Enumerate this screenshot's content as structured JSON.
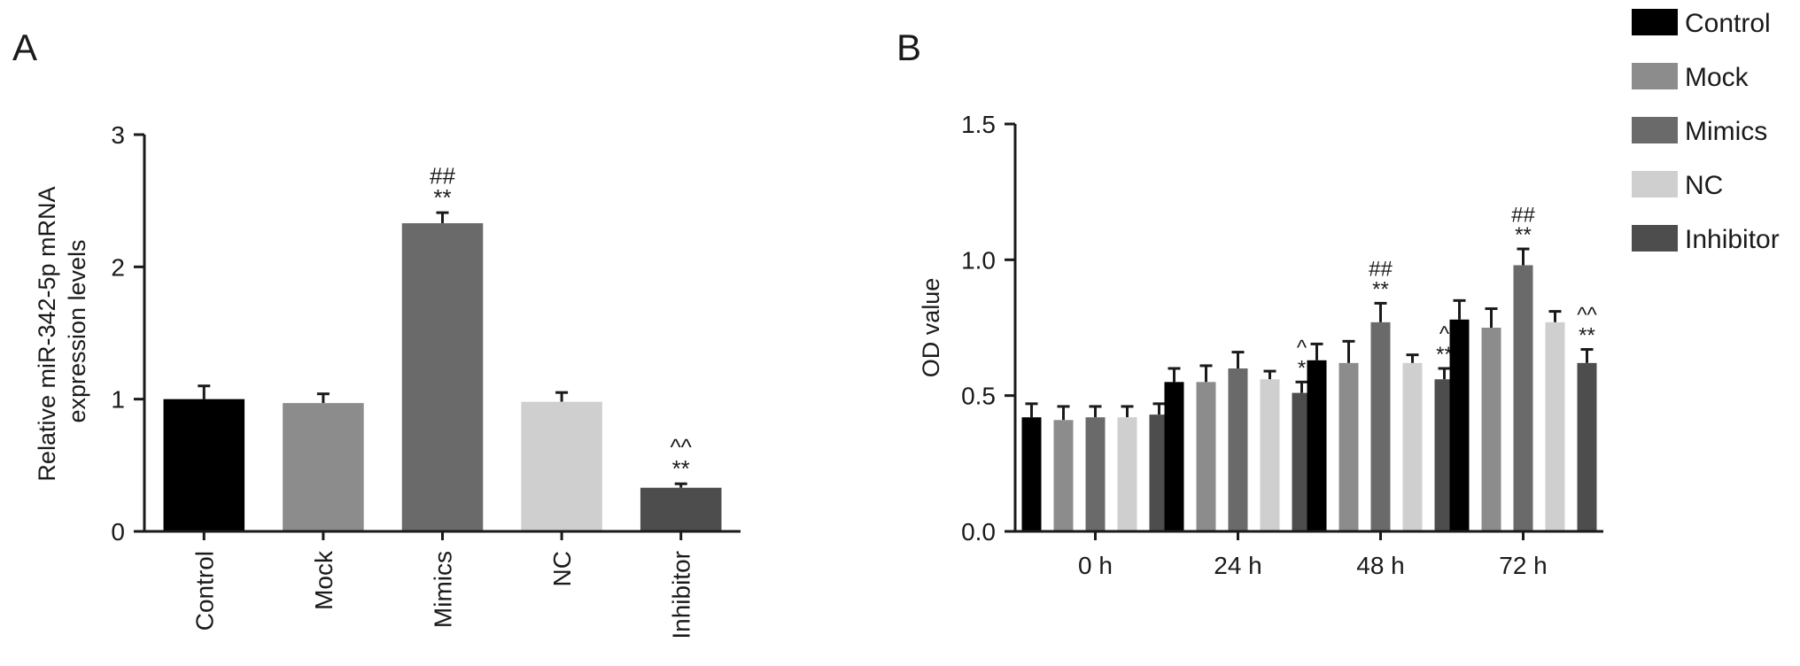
{
  "colors": {
    "Control": "#000000",
    "Mock": "#8c8c8c",
    "Mimics": "#6a6a6a",
    "NC": "#cfcfcf",
    "Inhibitor": "#4d4d4d",
    "axis": "#1a1a1a"
  },
  "chart_data": [
    {
      "panel": "A",
      "type": "bar",
      "title": "",
      "xlabel": "",
      "ylabel": "Relative miR-342-5p mRNA expression levels",
      "ylim": [
        0,
        3
      ],
      "yticks": [
        "0",
        "1",
        "2",
        "3"
      ],
      "categories": [
        "Control",
        "Mock",
        "Mimics",
        "NC",
        "Inhibitor"
      ],
      "values": [
        1.0,
        0.97,
        2.33,
        0.98,
        0.33
      ],
      "errors": [
        0.1,
        0.07,
        0.08,
        0.07,
        0.03
      ],
      "annotations": [
        {
          "category": "Mimics",
          "lines": [
            "##",
            "**"
          ]
        },
        {
          "category": "Inhibitor",
          "lines": [
            "^^",
            "**"
          ]
        }
      ]
    },
    {
      "panel": "B",
      "type": "bar",
      "title": "",
      "xlabel": "",
      "ylabel": "OD value",
      "ylim": [
        0,
        1.5
      ],
      "yticks": [
        "0.0",
        "0.5",
        "1.0",
        "1.5"
      ],
      "categories": [
        "0 h",
        "24 h",
        "48 h",
        "72 h"
      ],
      "legend_position": "top-right",
      "series": [
        {
          "name": "Control",
          "values": [
            0.42,
            0.55,
            0.63,
            0.78
          ],
          "errors": [
            0.05,
            0.05,
            0.06,
            0.07
          ]
        },
        {
          "name": "Mock",
          "values": [
            0.41,
            0.55,
            0.62,
            0.75
          ],
          "errors": [
            0.05,
            0.06,
            0.08,
            0.07
          ]
        },
        {
          "name": "Mimics",
          "values": [
            0.42,
            0.6,
            0.77,
            0.98
          ],
          "errors": [
            0.04,
            0.06,
            0.07,
            0.06
          ]
        },
        {
          "name": "NC",
          "values": [
            0.42,
            0.56,
            0.62,
            0.77
          ],
          "errors": [
            0.04,
            0.03,
            0.03,
            0.04
          ]
        },
        {
          "name": "Inhibitor",
          "values": [
            0.43,
            0.51,
            0.56,
            0.62
          ],
          "errors": [
            0.04,
            0.04,
            0.04,
            0.05
          ]
        }
      ],
      "annotations": [
        {
          "category": "24 h",
          "series": "Inhibitor",
          "lines": [
            "^",
            "*"
          ]
        },
        {
          "category": "48 h",
          "series": "Mimics",
          "lines": [
            "##",
            "**"
          ]
        },
        {
          "category": "48 h",
          "series": "Inhibitor",
          "lines": [
            "^",
            "**"
          ]
        },
        {
          "category": "72 h",
          "series": "Mimics",
          "lines": [
            "##",
            "**"
          ]
        },
        {
          "category": "72 h",
          "series": "Inhibitor",
          "lines": [
            "^^",
            "**"
          ]
        }
      ]
    }
  ]
}
